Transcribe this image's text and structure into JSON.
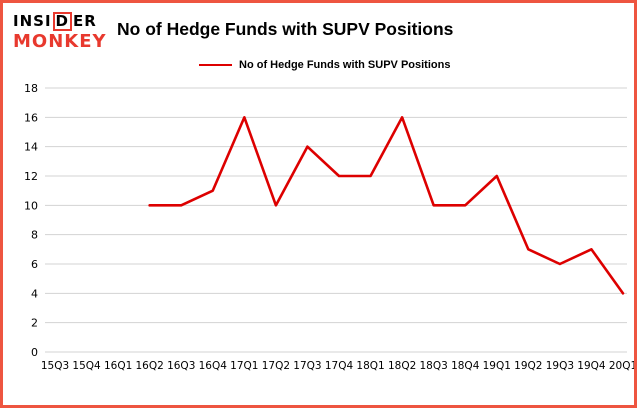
{
  "logo": {
    "part1": "INSI",
    "boxed": "D",
    "part2": "ER",
    "line2": "MONKEY"
  },
  "title": "No of Hedge Funds with SUPV Positions",
  "colors": {
    "line": "#dd0000",
    "border": "#ee5540",
    "grid": "#d3d3d3",
    "logo_red": "#e8392e",
    "text": "#000000"
  },
  "chart_data": {
    "type": "line",
    "title": "No of Hedge Funds with SUPV Positions",
    "legend": "No of Hedge Funds with SUPV Positions",
    "legend_position": "top",
    "xlabel": "",
    "ylabel": "",
    "categories": [
      "15Q3",
      "15Q4",
      "16Q1",
      "16Q2",
      "16Q3",
      "16Q4",
      "17Q1",
      "17Q2",
      "17Q3",
      "17Q4",
      "18Q1",
      "18Q2",
      "18Q3",
      "18Q4",
      "19Q1",
      "19Q2",
      "19Q3",
      "19Q4",
      "20Q1"
    ],
    "series": [
      {
        "name": "No of Hedge Funds with SUPV Positions",
        "values": [
          null,
          null,
          null,
          10,
          10,
          11,
          16,
          10,
          14,
          12,
          12,
          16,
          10,
          10,
          12,
          7,
          6,
          7,
          4
        ]
      }
    ],
    "ylim": [
      0,
      18
    ],
    "ytick_step": 2,
    "grid": "horizontal"
  }
}
